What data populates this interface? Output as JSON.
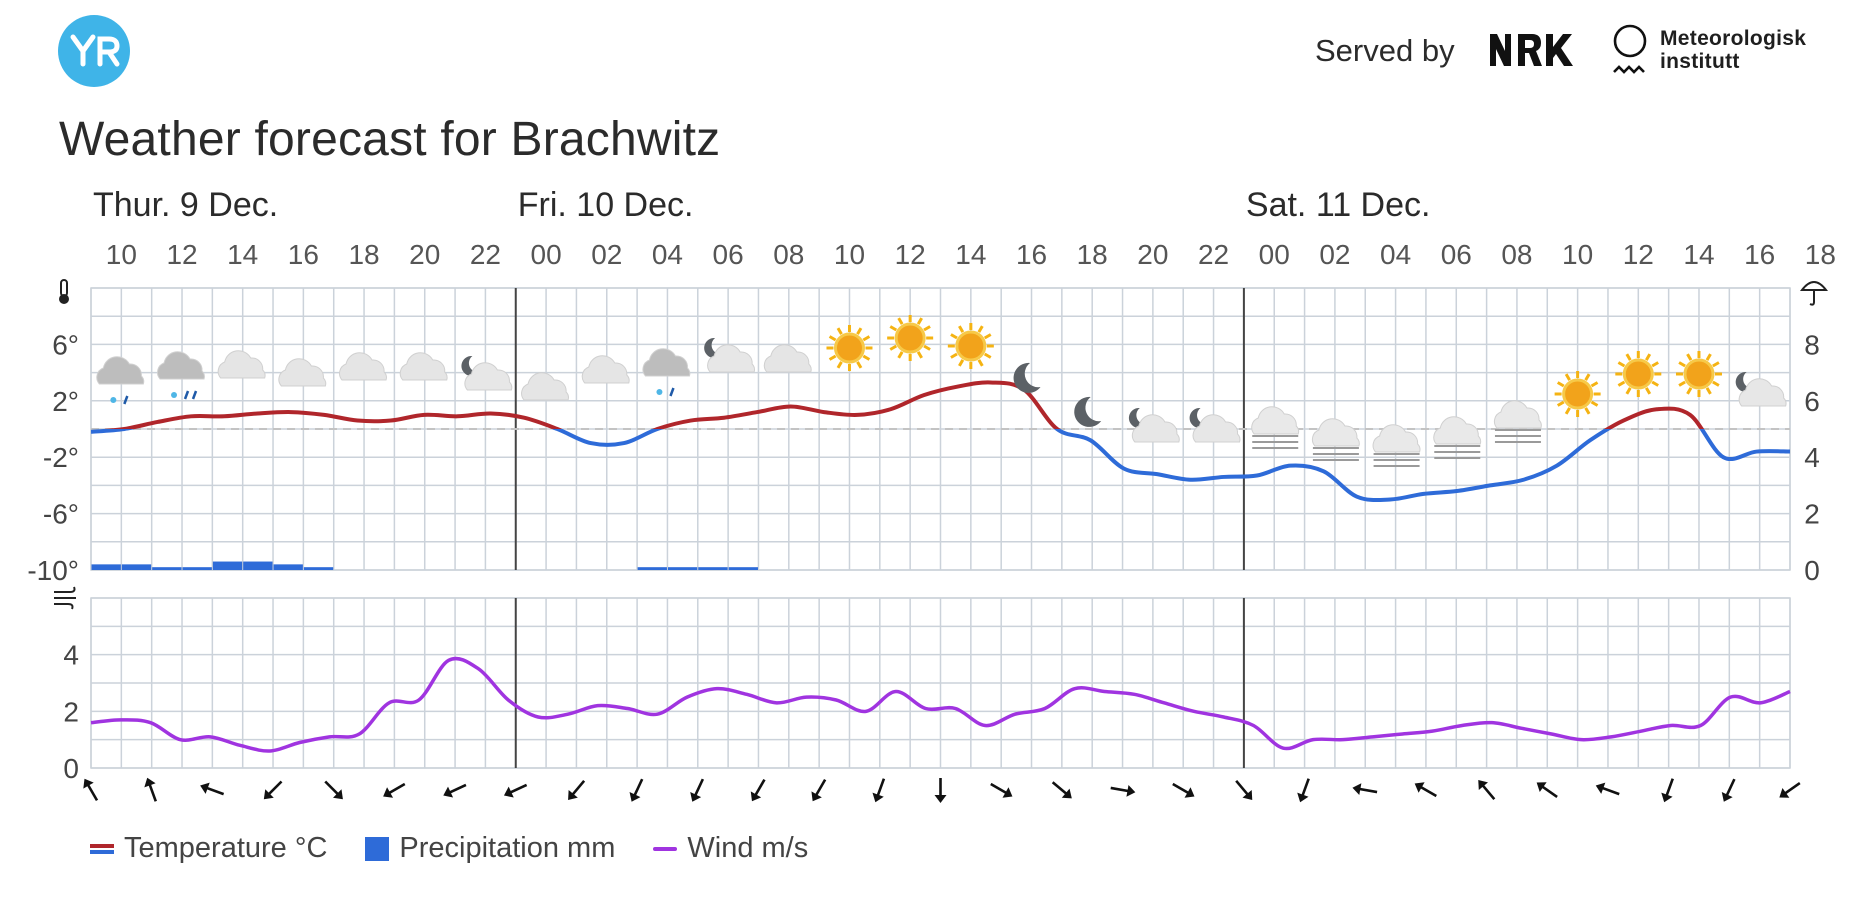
{
  "header": {
    "logo_text": "YR",
    "served_by": "Served by",
    "partner1": "NRK",
    "partner2_line1": "Meteorologisk",
    "partner2_line2": "institutt"
  },
  "title": "Weather forecast for Brachwitz",
  "colors": {
    "temp_warm": "#b0262b",
    "temp_cold": "#2e6bd8",
    "precip": "#2e6bd8",
    "wind": "#a034e0",
    "grid": "#cbd2da",
    "day_line": "#444444"
  },
  "legend": {
    "temperature": "Temperature °C",
    "precipitation": "Precipitation mm",
    "wind": "Wind m/s"
  },
  "chart_data": {
    "type": "line",
    "days": [
      {
        "label": "Thur. 9 Dec.",
        "start_hour": "10"
      },
      {
        "label": "Fri. 10 Dec.",
        "start_hour": "00"
      },
      {
        "label": "Sat. 11 Dec.",
        "start_hour": "00"
      }
    ],
    "hour_ticks": [
      "10",
      "12",
      "14",
      "16",
      "18",
      "20",
      "22",
      "00",
      "02",
      "04",
      "06",
      "08",
      "10",
      "12",
      "14",
      "16",
      "18",
      "20",
      "22",
      "00",
      "02",
      "04",
      "06",
      "08",
      "10",
      "12",
      "14",
      "16",
      "18"
    ],
    "temperature_axis": {
      "ticks": [
        "6°",
        "2°",
        "-2°",
        "-6°",
        "-10°"
      ],
      "ylim": [
        -10,
        10
      ],
      "icon": "thermometer-icon"
    },
    "precipitation_axis": {
      "ticks": [
        "8",
        "6",
        "4",
        "2",
        "0"
      ],
      "ylim": [
        0,
        10
      ],
      "icon": "umbrella-icon"
    },
    "wind_axis": {
      "ticks": [
        "4",
        "2",
        "0"
      ],
      "ylim": [
        0,
        6
      ],
      "icon": "wind-icon"
    },
    "temperature": [
      -0.2,
      0.0,
      0.5,
      0.9,
      0.9,
      1.1,
      1.2,
      1.0,
      0.6,
      0.6,
      1.0,
      0.9,
      1.1,
      0.8,
      0.0,
      -1.0,
      -1.0,
      0.0,
      0.6,
      0.8,
      1.2,
      1.6,
      1.2,
      1.0,
      1.4,
      2.4,
      3.0,
      3.3,
      2.8,
      0.0,
      -0.8,
      -2.8,
      -3.2,
      -3.6,
      -3.4,
      -3.3,
      -2.6,
      -3.0,
      -4.8,
      -5.0,
      -4.6,
      -4.4,
      -4.0,
      -3.6,
      -2.6,
      -0.8,
      0.6,
      1.4,
      1.0,
      -2.0,
      -1.6,
      -1.6
    ],
    "temperature_x_step_hours": 0.5,
    "precipitation": [
      0.2,
      0.2,
      0.1,
      0.1,
      0.3,
      0.3,
      0.2,
      0.1,
      0,
      0,
      0,
      0,
      0,
      0,
      0,
      0,
      0,
      0,
      0.1,
      0.1,
      0.1,
      0.1,
      0,
      0,
      0,
      0,
      0,
      0,
      0,
      0,
      0,
      0,
      0,
      0,
      0,
      0,
      0,
      0,
      0,
      0,
      0,
      0,
      0,
      0,
      0,
      0,
      0,
      0,
      0,
      0,
      0,
      0,
      0,
      0,
      0,
      0,
      0
    ],
    "wind": [
      1.6,
      1.7,
      1.6,
      1.0,
      1.1,
      0.8,
      0.6,
      0.9,
      1.1,
      1.2,
      2.3,
      2.4,
      3.8,
      3.5,
      2.4,
      1.8,
      1.9,
      2.2,
      2.1,
      1.9,
      2.5,
      2.8,
      2.6,
      2.3,
      2.5,
      2.4,
      2.0,
      2.7,
      2.1,
      2.1,
      1.5,
      1.9,
      2.1,
      2.8,
      2.7,
      2.6,
      2.3,
      2.0,
      1.8,
      1.5,
      0.7,
      1.0,
      1.0,
      1.1,
      1.2,
      1.3,
      1.5,
      1.6,
      1.4,
      1.2,
      1.0,
      1.1,
      1.3,
      1.5,
      1.5,
      2.5,
      2.3,
      2.7
    ],
    "symbols": [
      "cloud-snow-icon",
      "cloud-rain-snow-icon",
      "cloud-icon",
      "cloud-icon",
      "cloud-icon",
      "cloud-icon",
      "moon-cloud-icon",
      "cloud-icon",
      "cloud-icon",
      "cloud-snow-icon",
      "moon-cloud-icon",
      "cloud-icon",
      "sun-icon",
      "sun-icon",
      "sun-icon",
      "moon-icon",
      "moon-icon",
      "moon-cloud-icon",
      "moon-cloud-icon",
      "fog-icon",
      "fog-icon",
      "fog-icon",
      "fog-icon",
      "fog-icon",
      "sun-icon",
      "sun-icon",
      "sun-icon",
      "moon-cloud-icon"
    ],
    "wind_directions": [
      330,
      340,
      290,
      225,
      135,
      240,
      245,
      245,
      220,
      205,
      205,
      210,
      210,
      200,
      180,
      120,
      130,
      100,
      120,
      140,
      200,
      280,
      300,
      320,
      305,
      290,
      200,
      205,
      235
    ]
  }
}
